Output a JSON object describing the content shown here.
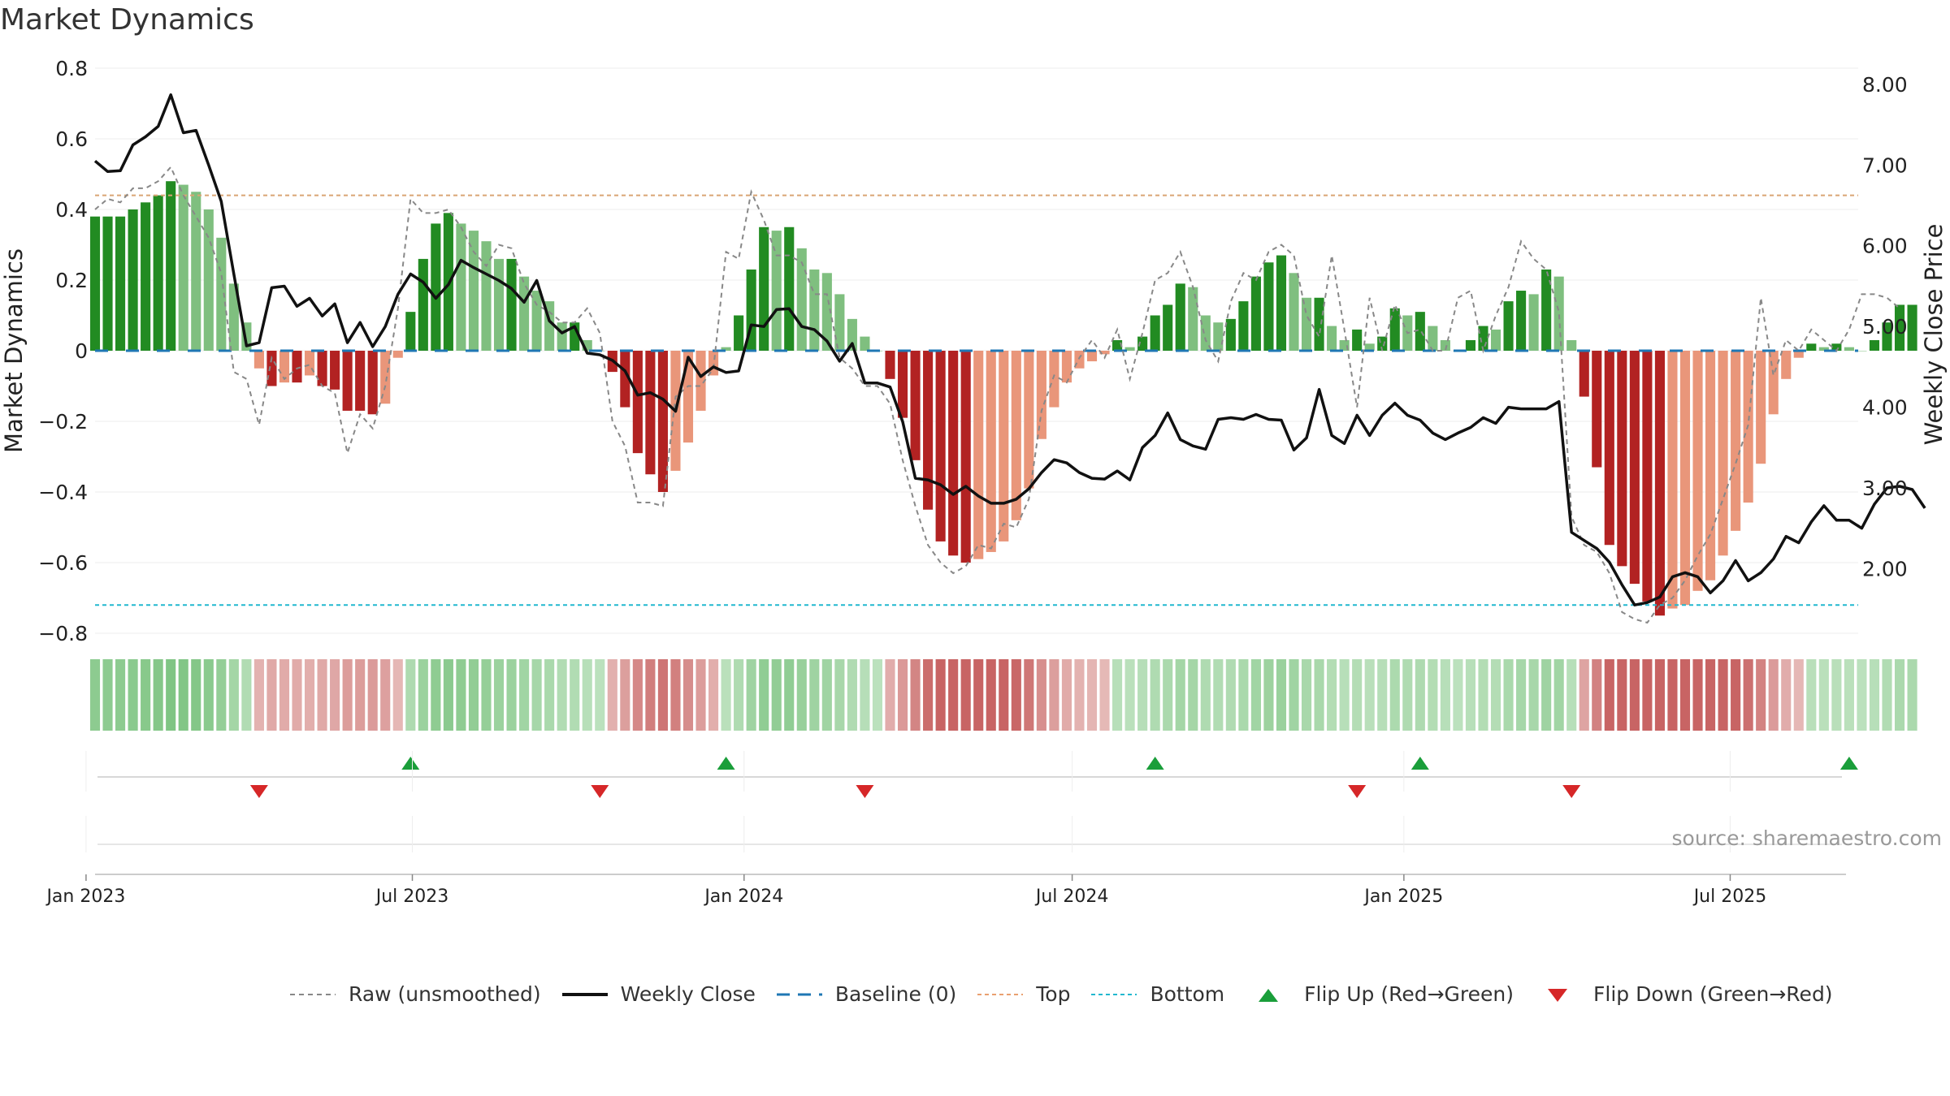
{
  "title": "Market Dynamics",
  "source": "source: sharemaestro.com",
  "colors": {
    "strong_green": "#228b22",
    "light_green": "#7fbf7f",
    "strong_red": "#b22222",
    "light_red": "#e9967a",
    "top_line": "#d8a878",
    "bottom_line": "#22b8cf",
    "baseline": "#1f77b4",
    "raw": "#888888",
    "close": "#111111",
    "flip_up": "#1a9e3a",
    "flip_down": "#d62728"
  },
  "chart_data": {
    "type": "bar",
    "title": "Market Dynamics",
    "ylabel_left": "Market Dynamics",
    "ylabel_right": "Weekly Close Price",
    "ylim_left": [
      -0.8,
      0.8
    ],
    "ylim_right": [
      1.2,
      8.2
    ],
    "left_ticks": [
      "0.8",
      "0.6",
      "0.4",
      "0.2",
      "0",
      "−0.2",
      "−0.4",
      "−0.6",
      "−0.8"
    ],
    "left_tick_values": [
      0.8,
      0.6,
      0.4,
      0.2,
      0,
      -0.2,
      -0.4,
      -0.6,
      -0.8
    ],
    "right_ticks": [
      "8.00",
      "7.00",
      "6.00",
      "5.00",
      "4.00",
      "3.00",
      "2.00"
    ],
    "right_tick_values": [
      8,
      7,
      6,
      5,
      4,
      3,
      2
    ],
    "x_start": "2023-01-06",
    "x_ticks": [
      "Jan 2023",
      "Jul 2023",
      "Jan 2024",
      "Jul 2024",
      "Jan 2025",
      "Jul 2025"
    ],
    "x_tick_dates": [
      "2023-01-01",
      "2023-07-01",
      "2024-01-01",
      "2024-07-01",
      "2025-01-01",
      "2025-07-01"
    ],
    "x_end": "2025-09-10",
    "top": 0.44,
    "bottom": -0.72,
    "baseline": 0,
    "series": [
      {
        "name": "Market Dynamics",
        "values": [
          0.38,
          0.38,
          0.38,
          0.4,
          0.42,
          0.44,
          0.48,
          0.47,
          0.45,
          0.4,
          0.32,
          0.19,
          0.08,
          -0.05,
          -0.1,
          -0.09,
          -0.09,
          -0.07,
          -0.1,
          -0.11,
          -0.17,
          -0.17,
          -0.18,
          -0.15,
          -0.02,
          0.11,
          0.26,
          0.36,
          0.39,
          0.36,
          0.34,
          0.31,
          0.26,
          0.26,
          0.21,
          0.17,
          0.14,
          0.08,
          0.08,
          0.03,
          0.0,
          -0.06,
          -0.16,
          -0.29,
          -0.35,
          -0.4,
          -0.34,
          -0.26,
          -0.17,
          -0.07,
          0.01,
          0.1,
          0.23,
          0.35,
          0.34,
          0.35,
          0.29,
          0.23,
          0.22,
          0.16,
          0.09,
          0.04,
          0.0,
          -0.08,
          -0.19,
          -0.31,
          -0.45,
          -0.54,
          -0.58,
          -0.6,
          -0.59,
          -0.57,
          -0.54,
          -0.48,
          -0.39,
          -0.25,
          -0.16,
          -0.09,
          -0.05,
          -0.03,
          -0.01,
          0.03,
          0.01,
          0.04,
          0.1,
          0.13,
          0.19,
          0.18,
          0.1,
          0.08,
          0.09,
          0.14,
          0.21,
          0.25,
          0.27,
          0.22,
          0.15,
          0.15,
          0.07,
          0.03,
          0.06,
          0.02,
          0.04,
          0.12,
          0.1,
          0.11,
          0.07,
          0.03,
          0.0,
          0.03,
          0.07,
          0.06,
          0.14,
          0.17,
          0.16,
          0.23,
          0.21,
          0.03,
          -0.13,
          -0.33,
          -0.55,
          -0.61,
          -0.66,
          -0.71,
          -0.75,
          -0.73,
          -0.72,
          -0.68,
          -0.65,
          -0.58,
          -0.51,
          -0.43,
          -0.32,
          -0.18,
          -0.08,
          -0.02,
          0.02,
          0.01,
          0.02,
          0.01,
          0.0,
          0.03,
          0.08,
          0.13,
          0.13
        ]
      },
      {
        "name": "Raw (unsmoothed)",
        "values": [
          0.4,
          0.43,
          0.42,
          0.46,
          0.46,
          0.48,
          0.52,
          0.44,
          0.38,
          0.32,
          0.22,
          -0.06,
          -0.08,
          -0.21,
          -0.02,
          -0.08,
          -0.05,
          -0.04,
          -0.1,
          -0.12,
          -0.29,
          -0.18,
          -0.22,
          -0.1,
          0.12,
          0.43,
          0.39,
          0.39,
          0.4,
          0.35,
          0.28,
          0.24,
          0.3,
          0.29,
          0.19,
          0.13,
          0.11,
          0.08,
          0.08,
          0.12,
          0.05,
          -0.2,
          -0.27,
          -0.43,
          -0.43,
          -0.44,
          -0.13,
          -0.1,
          -0.1,
          -0.05,
          0.28,
          0.26,
          0.45,
          0.37,
          0.27,
          0.27,
          0.25,
          0.16,
          0.16,
          -0.02,
          -0.05,
          -0.1,
          -0.1,
          -0.15,
          -0.31,
          -0.44,
          -0.55,
          -0.6,
          -0.63,
          -0.61,
          -0.55,
          -0.56,
          -0.49,
          -0.5,
          -0.42,
          -0.17,
          -0.07,
          -0.09,
          -0.02,
          0.03,
          -0.02,
          0.06,
          -0.08,
          0.05,
          0.2,
          0.22,
          0.28,
          0.18,
          0.03,
          -0.03,
          0.14,
          0.22,
          0.2,
          0.28,
          0.3,
          0.27,
          0.1,
          0.04,
          0.27,
          0.06,
          -0.16,
          0.15,
          0.0,
          0.13,
          0.05,
          0.06,
          0.0,
          0.0,
          0.15,
          0.17,
          0.0,
          0.1,
          0.18,
          0.31,
          0.26,
          0.23,
          0.11,
          -0.47,
          -0.55,
          -0.57,
          -0.63,
          -0.74,
          -0.76,
          -0.77,
          -0.72,
          -0.7,
          -0.65,
          -0.58,
          -0.52,
          -0.42,
          -0.32,
          -0.21,
          0.15,
          -0.07,
          0.03,
          0.0,
          0.06,
          0.03,
          0.0,
          0.06,
          0.16,
          0.16,
          0.15,
          0.12
        ]
      },
      {
        "name": "Weekly Close",
        "values": [
          7.05,
          6.92,
          6.93,
          7.25,
          7.35,
          7.48,
          7.87,
          7.4,
          7.43,
          7.0,
          6.55,
          5.65,
          4.76,
          4.8,
          5.48,
          5.5,
          5.25,
          5.35,
          5.13,
          5.28,
          4.8,
          5.05,
          4.75,
          5.0,
          5.4,
          5.65,
          5.55,
          5.35,
          5.52,
          5.82,
          5.73,
          5.65,
          5.57,
          5.47,
          5.3,
          5.57,
          5.07,
          4.92,
          5.0,
          4.67,
          4.65,
          4.58,
          4.45,
          4.15,
          4.18,
          4.1,
          3.95,
          4.62,
          4.38,
          4.5,
          4.43,
          4.45,
          5.02,
          5.0,
          5.21,
          5.22,
          5.0,
          4.96,
          4.82,
          4.57,
          4.79,
          4.3,
          4.3,
          4.25,
          3.82,
          3.12,
          3.1,
          3.04,
          2.92,
          3.02,
          2.9,
          2.81,
          2.81,
          2.86,
          2.99,
          3.19,
          3.35,
          3.31,
          3.19,
          3.12,
          3.11,
          3.21,
          3.1,
          3.5,
          3.65,
          3.93,
          3.6,
          3.52,
          3.48,
          3.85,
          3.87,
          3.85,
          3.91,
          3.85,
          3.84,
          3.47,
          3.62,
          4.22,
          3.65,
          3.55,
          3.9,
          3.65,
          3.9,
          4.05,
          3.9,
          3.84,
          3.68,
          3.6,
          3.68,
          3.75,
          3.87,
          3.8,
          4.0,
          3.98,
          3.98,
          3.98,
          4.07,
          2.45,
          2.35,
          2.25,
          2.08,
          1.8,
          1.55,
          1.58,
          1.65,
          1.9,
          1.95,
          1.9,
          1.7,
          1.85,
          2.1,
          1.85,
          1.95,
          2.12,
          2.4,
          2.32,
          2.58,
          2.78,
          2.6,
          2.6,
          2.5,
          2.8,
          3.0,
          3.02,
          2.98,
          2.75
        ]
      },
      {
        "name": "Baseline (0)",
        "values": [
          0
        ]
      },
      {
        "name": "Top",
        "values": [
          0.44
        ]
      },
      {
        "name": "Bottom",
        "values": [
          -0.72
        ]
      }
    ],
    "flip_up_weeks": [
      25,
      50,
      84,
      105,
      139
    ],
    "flip_down_weeks": [
      13,
      40,
      61,
      100,
      117
    ],
    "legend": [
      "Raw (unsmoothed)",
      "Weekly Close",
      "Baseline (0)",
      "Top",
      "Bottom",
      "Flip Up (Red→Green)",
      "Flip Down (Green→Red)"
    ],
    "legend_placement": "bottom",
    "grid": true
  }
}
